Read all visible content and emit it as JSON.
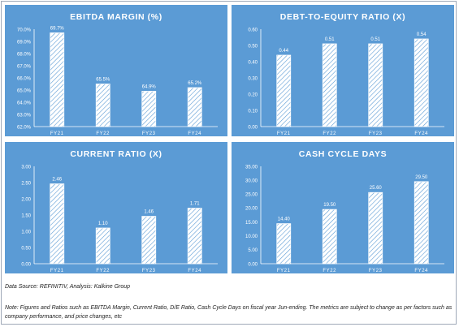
{
  "chart_data": [
    {
      "type": "bar",
      "title": "EBITDA MARGIN (%)",
      "categories": [
        "FY21",
        "FY22",
        "FY23",
        "FY24"
      ],
      "values": [
        69.7,
        65.5,
        64.9,
        65.2
      ],
      "labels": [
        "69.7%",
        "65.5%",
        "64.9%",
        "65.2%"
      ],
      "ylim": [
        62.0,
        70.0
      ],
      "yticks": [
        "62.0%",
        "63.0%",
        "64.0%",
        "65.0%",
        "66.0%",
        "67.0%",
        "68.0%",
        "69.0%",
        "70.0%"
      ],
      "xlabel": "",
      "ylabel": "",
      "grid": false
    },
    {
      "type": "bar",
      "title": "DEBT-TO-EQUITY RATIO (X)",
      "categories": [
        "FY21",
        "FY22",
        "FY23",
        "FY24"
      ],
      "values": [
        0.44,
        0.51,
        0.51,
        0.54
      ],
      "labels": [
        "0.44",
        "0.51",
        "0.51",
        "0.54"
      ],
      "ylim": [
        0,
        0.6
      ],
      "yticks": [
        "0.00",
        "0.10",
        "0.20",
        "0.30",
        "0.40",
        "0.50",
        "0.60"
      ],
      "xlabel": "",
      "ylabel": "",
      "grid": false
    },
    {
      "type": "bar",
      "title": "CURRENT RATIO (X)",
      "categories": [
        "FY21",
        "FY22",
        "FY23",
        "FY24"
      ],
      "values": [
        2.46,
        1.1,
        1.46,
        1.71
      ],
      "labels": [
        "2.46",
        "1.10",
        "1.46",
        "1.71"
      ],
      "ylim": [
        0,
        3.0
      ],
      "yticks": [
        "0.00",
        "0.50",
        "1.00",
        "1.50",
        "2.00",
        "2.50",
        "3.00"
      ],
      "xlabel": "",
      "ylabel": "",
      "grid": false
    },
    {
      "type": "bar",
      "title": "CASH CYCLE DAYS",
      "categories": [
        "FY21",
        "FY22",
        "FY23",
        "FY24"
      ],
      "values": [
        14.4,
        19.5,
        25.6,
        29.5
      ],
      "labels": [
        "14.40",
        "19.50",
        "25.60",
        "29.50"
      ],
      "ylim": [
        0,
        35
      ],
      "yticks": [
        "0.00",
        "5.00",
        "10.00",
        "15.00",
        "20.00",
        "25.00",
        "30.00",
        "35.00"
      ],
      "xlabel": "",
      "ylabel": "",
      "grid": false
    }
  ],
  "footer": {
    "source": "Data Source: REFINITIV, Analysis: Kalkine Group",
    "note": "Note: Figures and Ratios such as EBITDA Margin, Current Ratio, D/E Ratio, Cash Cycle Days on fiscal year Jun-ending. The metrics are subject to change as per factors such as company performance, and price changes, etc"
  },
  "colors": {
    "panel_bg": "#5b9bd5",
    "bar_fill": "#ffffff",
    "bar_stroke": "#5b9bd5",
    "text": "#ffffff"
  }
}
